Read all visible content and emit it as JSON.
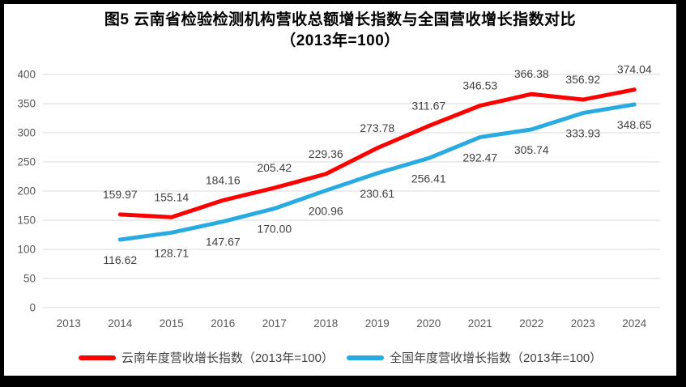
{
  "title": {
    "line1": "图5  云南省检验检测机构营收总额增长指数与全国营收增长指数对比",
    "line2": "（2013年=100）"
  },
  "chart_data": {
    "type": "line",
    "categories": [
      "2013",
      "2014",
      "2015",
      "2016",
      "2017",
      "2018",
      "2019",
      "2020",
      "2021",
      "2022",
      "2023",
      "2024"
    ],
    "series": [
      {
        "name": "云南年度营收增长指数（2013年=100）",
        "color": "#FE0000",
        "start_index": 1,
        "values": [
          159.97,
          155.14,
          184.16,
          205.42,
          229.36,
          273.78,
          311.67,
          346.53,
          366.38,
          356.92,
          374.04
        ],
        "label_position": "above"
      },
      {
        "name": "全国年度营收增长指数（2013年=100）",
        "color": "#29ABE2",
        "start_index": 1,
        "values": [
          116.62,
          128.71,
          147.67,
          170.0,
          200.96,
          230.61,
          256.41,
          292.47,
          305.74,
          333.93,
          348.65
        ],
        "label_position": "below"
      }
    ],
    "ylim": [
      0,
      400
    ],
    "ytick_step": 50,
    "grid": true,
    "legend_position": "bottom",
    "colors": {
      "gridline": "#D9D9D9",
      "axis_label": "#595959",
      "data_label": "#404040",
      "title": "#000000",
      "frame": "#000000",
      "background": "#FFFFFF"
    }
  }
}
